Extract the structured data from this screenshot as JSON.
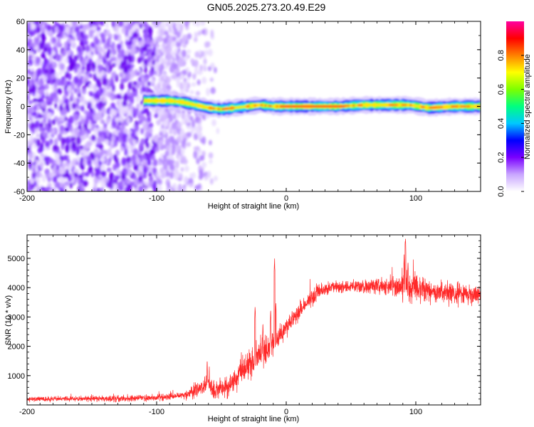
{
  "title": "GN05.2025.273.20.49.E29",
  "chart_data": [
    {
      "type": "heatmap",
      "name": "spectrogram",
      "xlabel": "Height of straight line (km)",
      "ylabel": "Frequency (Hz)",
      "xlim": [
        -200,
        150
      ],
      "ylim": [
        -60,
        60
      ],
      "xticks": [
        -200,
        -100,
        0,
        100
      ],
      "yticks": [
        -60,
        -40,
        -20,
        0,
        20,
        40,
        60
      ],
      "xtick_labels": [
        "-200",
        "-100",
        "0",
        "100"
      ],
      "ytick_labels": [
        "-60",
        "-40",
        "-20",
        "0",
        "20",
        "40",
        "60"
      ],
      "noise_region_km": [
        -200,
        -55
      ],
      "signal_start_km": -110,
      "frequency_track": [
        {
          "x": -110,
          "y": 4
        },
        {
          "x": -100,
          "y": 4
        },
        {
          "x": -90,
          "y": 4
        },
        {
          "x": -80,
          "y": 3
        },
        {
          "x": -70,
          "y": 1
        },
        {
          "x": -60,
          "y": -1
        },
        {
          "x": -50,
          "y": -2
        },
        {
          "x": -40,
          "y": -1
        },
        {
          "x": -30,
          "y": 0
        },
        {
          "x": -20,
          "y": 1
        },
        {
          "x": -10,
          "y": 0
        },
        {
          "x": 0,
          "y": 0
        },
        {
          "x": 20,
          "y": 0
        },
        {
          "x": 40,
          "y": 0
        },
        {
          "x": 60,
          "y": 1
        },
        {
          "x": 80,
          "y": 1
        },
        {
          "x": 95,
          "y": 1
        },
        {
          "x": 110,
          "y": -1
        },
        {
          "x": 130,
          "y": 0
        },
        {
          "x": 150,
          "y": 0
        }
      ],
      "colorbar": {
        "label": "Normalized spectral amplitude",
        "range": [
          0,
          1
        ],
        "ticks": [
          0,
          0.2,
          0.4,
          0.6,
          0.8
        ],
        "tick_labels": [
          "0.0",
          "0.2",
          "0.4",
          "0.6",
          "0.8"
        ],
        "colors": [
          "#ffffff",
          "#c9a6ff",
          "#7a00ff",
          "#0000ff",
          "#00c8ff",
          "#00ff80",
          "#7dff00",
          "#ffff00",
          "#ff8000",
          "#ff0000",
          "#ff00a0"
        ]
      }
    },
    {
      "type": "line",
      "name": "snr",
      "xlabel": "Height of straight line (km)",
      "ylabel": "SNR (10 * v/v)",
      "xlim": [
        -200,
        150
      ],
      "ylim": [
        0,
        5800
      ],
      "xticks": [
        -200,
        -100,
        0,
        100
      ],
      "yticks": [
        1000,
        2000,
        3000,
        4000,
        5000
      ],
      "xtick_labels": [
        "-200",
        "-100",
        "0",
        "100"
      ],
      "ytick_labels": [
        "1000",
        "2000",
        "3000",
        "4000",
        "5000"
      ],
      "color": "#ff2a2a",
      "envelope": [
        {
          "x": -200,
          "y": 200
        },
        {
          "x": -120,
          "y": 220
        },
        {
          "x": -90,
          "y": 280
        },
        {
          "x": -75,
          "y": 350
        },
        {
          "x": -65,
          "y": 600
        },
        {
          "x": -60,
          "y": 750
        },
        {
          "x": -55,
          "y": 450
        },
        {
          "x": -45,
          "y": 650
        },
        {
          "x": -35,
          "y": 1050
        },
        {
          "x": -25,
          "y": 1550
        },
        {
          "x": -18,
          "y": 1850
        },
        {
          "x": -12,
          "y": 2000
        },
        {
          "x": -5,
          "y": 2350
        },
        {
          "x": 5,
          "y": 2900
        },
        {
          "x": 15,
          "y": 3450
        },
        {
          "x": 25,
          "y": 3850
        },
        {
          "x": 35,
          "y": 4000
        },
        {
          "x": 50,
          "y": 4050
        },
        {
          "x": 70,
          "y": 4050
        },
        {
          "x": 90,
          "y": 4050
        },
        {
          "x": 110,
          "y": 3900
        },
        {
          "x": 130,
          "y": 3800
        },
        {
          "x": 150,
          "y": 3800
        }
      ],
      "noise": [
        {
          "x": -200,
          "y": 60
        },
        {
          "x": -80,
          "y": 80
        },
        {
          "x": -65,
          "y": 220
        },
        {
          "x": -40,
          "y": 250
        },
        {
          "x": -20,
          "y": 350
        },
        {
          "x": 0,
          "y": 260
        },
        {
          "x": 20,
          "y": 180
        },
        {
          "x": 50,
          "y": 130
        },
        {
          "x": 80,
          "y": 220
        },
        {
          "x": 95,
          "y": 380
        },
        {
          "x": 110,
          "y": 280
        },
        {
          "x": 150,
          "y": 240
        }
      ],
      "spikes": [
        {
          "x": -61,
          "y": 1500
        },
        {
          "x": -24,
          "y": 3350
        },
        {
          "x": -18,
          "y": 2800
        },
        {
          "x": -12,
          "y": 3250
        },
        {
          "x": -9,
          "y": 5000
        },
        {
          "x": -8,
          "y": 3500
        },
        {
          "x": 91,
          "y": 5100
        },
        {
          "x": 92,
          "y": 5800
        },
        {
          "x": 94,
          "y": 4900
        }
      ]
    }
  ]
}
